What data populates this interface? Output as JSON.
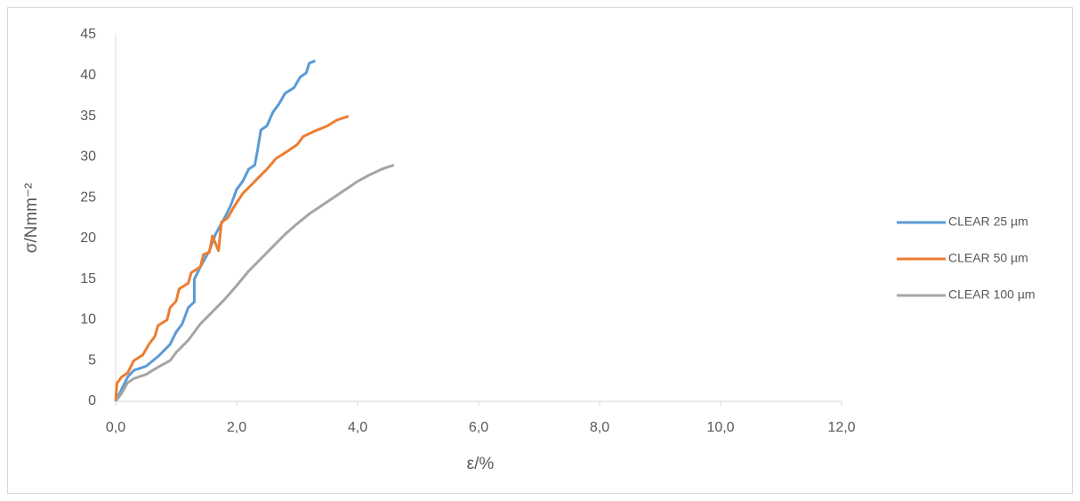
{
  "chart_data": {
    "type": "line",
    "xlabel": "ε/%",
    "ylabel": "σ/Nmm⁻²",
    "xlim": [
      0,
      12
    ],
    "xticks": [
      {
        "value": 0,
        "label": "0,0"
      },
      {
        "value": 2,
        "label": "2,0"
      },
      {
        "value": 4,
        "label": "4,0"
      },
      {
        "value": 6,
        "label": "6,0"
      },
      {
        "value": 8,
        "label": "8,0"
      },
      {
        "value": 10,
        "label": "10,0"
      },
      {
        "value": 12,
        "label": "12,0"
      }
    ],
    "ylim": [
      0,
      45
    ],
    "yticks": [
      0,
      5,
      10,
      15,
      20,
      25,
      30,
      35,
      40,
      45
    ],
    "grid": false,
    "legend": "right",
    "series": [
      {
        "name": "CLEAR 25 µm",
        "color": "#5b9bd5",
        "x": [
          0,
          0.1,
          0.2,
          0.3,
          0.5,
          0.7,
          0.9,
          1.0,
          1.1,
          1.2,
          1.3,
          1.3,
          1.4,
          1.55,
          1.65,
          1.8,
          1.9,
          2.0,
          2.1,
          2.2,
          2.3,
          2.35,
          2.4,
          2.5,
          2.6,
          2.7,
          2.8,
          2.95,
          3.05,
          3.15,
          3.2,
          3.3
        ],
        "values": [
          0,
          1.5,
          3,
          3.8,
          4.3,
          5.5,
          7,
          8.5,
          9.5,
          11.5,
          12.2,
          15,
          16.5,
          18.5,
          20.5,
          22.5,
          24,
          26,
          27,
          28.5,
          29,
          31,
          33.3,
          33.8,
          35.5,
          36.5,
          37.8,
          38.5,
          39.8,
          40.3,
          41.5,
          41.8
        ]
      },
      {
        "name": "CLEAR 50 µm",
        "color": "#ed7d31",
        "x": [
          0,
          0.02,
          0.1,
          0.2,
          0.3,
          0.45,
          0.55,
          0.65,
          0.7,
          0.85,
          0.9,
          1.0,
          1.05,
          1.2,
          1.25,
          1.4,
          1.45,
          1.55,
          1.6,
          1.7,
          1.75,
          1.85,
          1.95,
          2.1,
          2.3,
          2.5,
          2.65,
          2.8,
          3.0,
          3.1,
          3.3,
          3.5,
          3.65,
          3.85
        ],
        "values": [
          0,
          2.2,
          3,
          3.5,
          5,
          5.7,
          7,
          8,
          9.3,
          10,
          11.5,
          12.3,
          13.8,
          14.5,
          15.8,
          16.5,
          18,
          18.3,
          20.3,
          18.5,
          22,
          22.5,
          23.8,
          25.5,
          27,
          28.5,
          29.8,
          30.5,
          31.5,
          32.5,
          33.2,
          33.8,
          34.5,
          35
        ]
      },
      {
        "name": "CLEAR 100 µm",
        "color": "#a5a5a5",
        "x": [
          0,
          0.1,
          0.2,
          0.3,
          0.5,
          0.7,
          0.9,
          1.0,
          1.2,
          1.4,
          1.6,
          1.8,
          2.0,
          2.2,
          2.4,
          2.6,
          2.8,
          3.0,
          3.2,
          3.4,
          3.6,
          3.8,
          4.0,
          4.2,
          4.4,
          4.6
        ],
        "values": [
          0,
          1,
          2.3,
          2.8,
          3.3,
          4.2,
          5,
          6,
          7.5,
          9.5,
          11,
          12.5,
          14.2,
          16,
          17.5,
          19,
          20.5,
          21.8,
          23,
          24,
          25,
          26,
          27,
          27.8,
          28.5,
          29
        ]
      }
    ]
  }
}
